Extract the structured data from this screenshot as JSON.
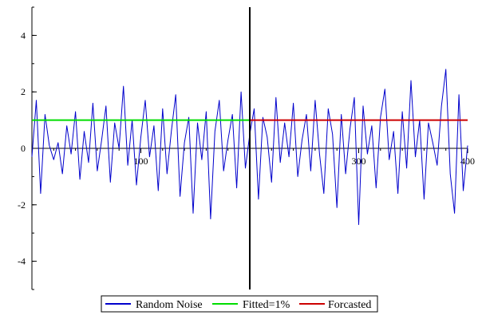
{
  "chart_data": {
    "type": "line",
    "title": "",
    "xlabel": "",
    "ylabel": "",
    "xlim": [
      0,
      400
    ],
    "ylim": [
      -5,
      5
    ],
    "x_ticks": [
      {
        "value": 100,
        "label": "100"
      },
      {
        "value": 300,
        "label": "300"
      },
      {
        "value": 400,
        "label": "400"
      }
    ],
    "y_ticks": [
      {
        "value": -4,
        "label": "-4"
      },
      {
        "value": -2,
        "label": "-2"
      },
      {
        "value": 0,
        "label": "0"
      },
      {
        "value": 2,
        "label": "2"
      },
      {
        "value": 4,
        "label": "4"
      }
    ],
    "divider_x": 200,
    "legend_position": "bottom",
    "grid": false,
    "series": [
      {
        "name": "Random Noise",
        "color": "#0000cc",
        "x": [
          0,
          4,
          8,
          12,
          16,
          20,
          24,
          28,
          32,
          36,
          40,
          44,
          48,
          52,
          56,
          60,
          64,
          68,
          72,
          76,
          80,
          84,
          88,
          92,
          96,
          100,
          104,
          108,
          112,
          116,
          120,
          124,
          128,
          132,
          136,
          140,
          144,
          148,
          152,
          156,
          160,
          164,
          168,
          172,
          176,
          180,
          184,
          188,
          192,
          196,
          200,
          204,
          208,
          212,
          216,
          220,
          224,
          228,
          232,
          236,
          240,
          244,
          248,
          252,
          256,
          260,
          264,
          268,
          272,
          276,
          280,
          284,
          288,
          292,
          296,
          300,
          304,
          308,
          312,
          316,
          320,
          324,
          328,
          332,
          336,
          340,
          344,
          348,
          352,
          356,
          360,
          364,
          368,
          372,
          376,
          380,
          384,
          388,
          392,
          396,
          400
        ],
        "y": [
          -0.3,
          1.7,
          -1.6,
          1.2,
          0.1,
          -0.4,
          0.2,
          -0.9,
          0.8,
          -0.2,
          1.3,
          -1.1,
          0.6,
          -0.5,
          1.6,
          -0.8,
          0.3,
          1.5,
          -1.2,
          0.9,
          0.0,
          2.2,
          -0.6,
          1.0,
          -1.3,
          0.4,
          1.7,
          -0.3,
          0.8,
          -1.5,
          1.4,
          -0.9,
          0.6,
          1.9,
          -1.7,
          0.2,
          1.1,
          -2.3,
          0.9,
          -0.4,
          1.3,
          -2.5,
          0.6,
          1.7,
          -0.8,
          0.3,
          1.2,
          -1.4,
          2.0,
          -0.7,
          0.5,
          1.4,
          -1.8,
          1.1,
          0.4,
          -1.2,
          1.8,
          -0.5,
          0.9,
          -0.3,
          1.6,
          -1.0,
          0.3,
          1.2,
          -0.8,
          1.7,
          -0.2,
          -1.6,
          1.4,
          0.5,
          -2.1,
          1.2,
          -0.9,
          0.7,
          1.8,
          -2.7,
          1.5,
          -0.2,
          0.8,
          -1.4,
          1.1,
          2.1,
          -0.4,
          0.6,
          -1.6,
          1.3,
          -0.7,
          2.4,
          -0.3,
          1.0,
          -1.8,
          0.9,
          0.2,
          -0.6,
          1.5,
          2.8,
          -0.9,
          -2.3,
          1.9,
          -1.5,
          0.1
        ]
      },
      {
        "name": "Fitted=1%",
        "color": "#00dd00",
        "x": [
          0,
          200
        ],
        "y": [
          1.0,
          1.0
        ]
      },
      {
        "name": "Forcasted",
        "color": "#cc0000",
        "x": [
          200,
          400
        ],
        "y": [
          1.0,
          1.0
        ]
      }
    ]
  }
}
